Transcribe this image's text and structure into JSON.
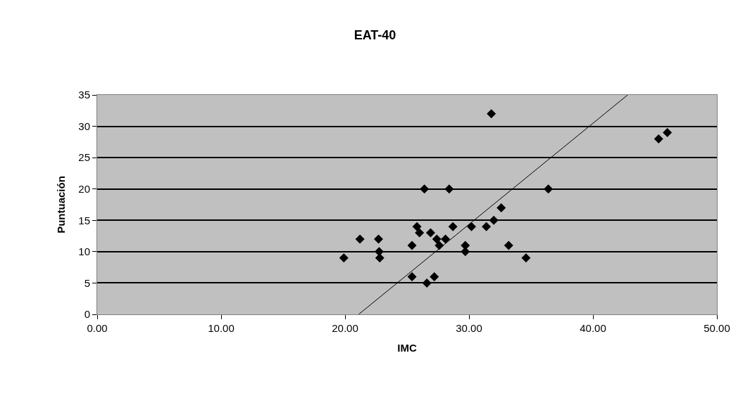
{
  "chart_data": {
    "type": "scatter",
    "title": "EAT-40",
    "xlabel": "IMC",
    "ylabel": "Puntuación",
    "xlim": [
      0,
      50
    ],
    "xticks": [
      {
        "value": 0,
        "label": "0.00"
      },
      {
        "value": 10,
        "label": "10.00"
      },
      {
        "value": 20,
        "label": "20.00"
      },
      {
        "value": 30,
        "label": "30.00"
      },
      {
        "value": 40,
        "label": "40.00"
      },
      {
        "value": 50,
        "label": "50.00"
      }
    ],
    "ylim": [
      0,
      35
    ],
    "yticks": [
      0,
      5,
      10,
      15,
      20,
      25,
      30,
      35
    ],
    "grid": "y",
    "series": [
      {
        "marker": "diamond",
        "color": "#000000",
        "x": [
          19.9,
          21.2,
          22.7,
          22.75,
          22.8,
          25.4,
          25.4,
          25.8,
          26.0,
          26.4,
          26.6,
          26.9,
          27.2,
          27.4,
          27.6,
          28.1,
          28.4,
          28.7,
          29.7,
          29.7,
          30.2,
          31.4,
          31.8,
          32.0,
          32.6,
          33.2,
          34.6,
          36.4,
          45.3,
          46.0
        ],
        "values": [
          9,
          12,
          12,
          10,
          9,
          11,
          6,
          14,
          13,
          20,
          5,
          13,
          6,
          12,
          11,
          12,
          20,
          14,
          11,
          10,
          14,
          14,
          32,
          15,
          17,
          11,
          9,
          20,
          28,
          29
        ]
      },
      {
        "type": "line",
        "marker": "none",
        "color": "#000000",
        "x": [
          21.1,
          42.8
        ],
        "values": [
          0,
          35
        ]
      }
    ]
  }
}
